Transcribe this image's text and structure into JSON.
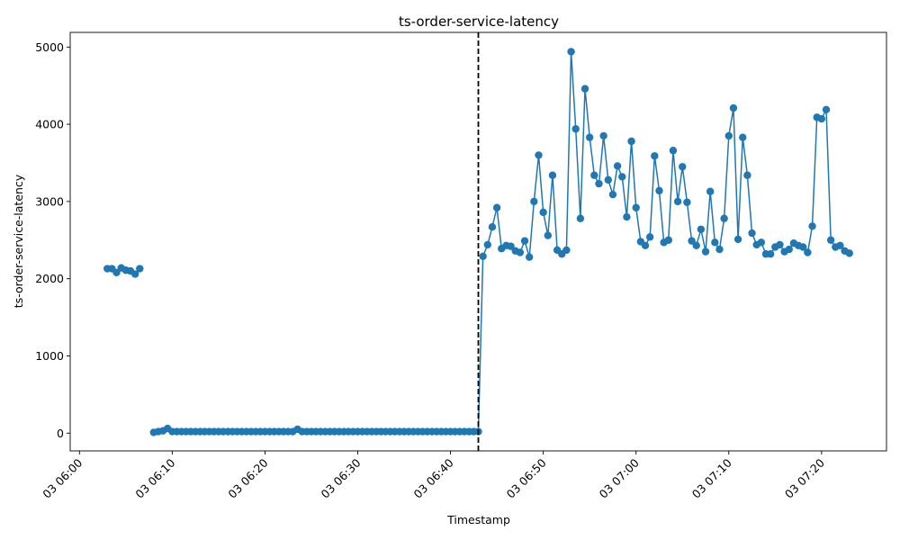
{
  "chart_data": {
    "type": "line",
    "title": "ts-order-service-latency",
    "xlabel": "Timestamp",
    "ylabel": "ts-order-service-latency",
    "x_tick_labels": [
      "03 06:00",
      "03 06:10",
      "03 06:20",
      "03 06:30",
      "03 06:40",
      "03 06:50",
      "03 07:00",
      "03 07:10",
      "03 07:20"
    ],
    "y_ticks": [
      0,
      1000,
      2000,
      3000,
      4000,
      5000
    ],
    "x_range": [
      "2024-01-03 05:59",
      "2024-01-03 07:27"
    ],
    "ylim": [
      -230,
      5190
    ],
    "grid": false,
    "marker": "circle",
    "series_color": "#1f77b4",
    "vline": {
      "time": "2024-01-03 06:43",
      "style": "dashed",
      "color": "#000000"
    },
    "series": [
      {
        "points": [
          [
            "2024-01-03 06:03",
            2130
          ],
          [
            "2024-01-03 06:03:30",
            2130
          ],
          [
            "2024-01-03 06:04",
            2080
          ],
          [
            "2024-01-03 06:04:30",
            2140
          ],
          [
            "2024-01-03 06:05",
            2110
          ],
          [
            "2024-01-03 06:05:30",
            2100
          ],
          [
            "2024-01-03 06:06",
            2060
          ],
          [
            "2024-01-03 06:06:30",
            2130
          ],
          [
            "2024-01-03 06:08",
            10
          ],
          [
            "2024-01-03 06:08:30",
            20
          ],
          [
            "2024-01-03 06:09",
            30
          ],
          [
            "2024-01-03 06:09:30",
            60
          ],
          [
            "2024-01-03 06:10",
            20
          ],
          [
            "2024-01-03 06:10:30",
            20
          ],
          [
            "2024-01-03 06:11",
            20
          ],
          [
            "2024-01-03 06:11:30",
            20
          ],
          [
            "2024-01-03 06:12",
            20
          ],
          [
            "2024-01-03 06:12:30",
            20
          ],
          [
            "2024-01-03 06:13",
            20
          ],
          [
            "2024-01-03 06:13:30",
            20
          ],
          [
            "2024-01-03 06:14",
            20
          ],
          [
            "2024-01-03 06:14:30",
            20
          ],
          [
            "2024-01-03 06:15",
            20
          ],
          [
            "2024-01-03 06:15:30",
            20
          ],
          [
            "2024-01-03 06:16",
            20
          ],
          [
            "2024-01-03 06:16:30",
            20
          ],
          [
            "2024-01-03 06:17",
            20
          ],
          [
            "2024-01-03 06:17:30",
            20
          ],
          [
            "2024-01-03 06:18",
            20
          ],
          [
            "2024-01-03 06:18:30",
            20
          ],
          [
            "2024-01-03 06:19",
            20
          ],
          [
            "2024-01-03 06:19:30",
            20
          ],
          [
            "2024-01-03 06:20",
            20
          ],
          [
            "2024-01-03 06:20:30",
            20
          ],
          [
            "2024-01-03 06:21",
            20
          ],
          [
            "2024-01-03 06:21:30",
            20
          ],
          [
            "2024-01-03 06:22",
            20
          ],
          [
            "2024-01-03 06:22:30",
            20
          ],
          [
            "2024-01-03 06:23",
            20
          ],
          [
            "2024-01-03 06:23:30",
            50
          ],
          [
            "2024-01-03 06:24",
            20
          ],
          [
            "2024-01-03 06:24:30",
            20
          ],
          [
            "2024-01-03 06:25",
            20
          ],
          [
            "2024-01-03 06:25:30",
            20
          ],
          [
            "2024-01-03 06:26",
            20
          ],
          [
            "2024-01-03 06:26:30",
            20
          ],
          [
            "2024-01-03 06:27",
            20
          ],
          [
            "2024-01-03 06:27:30",
            20
          ],
          [
            "2024-01-03 06:28",
            20
          ],
          [
            "2024-01-03 06:28:30",
            20
          ],
          [
            "2024-01-03 06:29",
            20
          ],
          [
            "2024-01-03 06:29:30",
            20
          ],
          [
            "2024-01-03 06:30",
            20
          ],
          [
            "2024-01-03 06:30:30",
            20
          ],
          [
            "2024-01-03 06:31",
            20
          ],
          [
            "2024-01-03 06:31:30",
            20
          ],
          [
            "2024-01-03 06:32",
            20
          ],
          [
            "2024-01-03 06:32:30",
            20
          ],
          [
            "2024-01-03 06:33",
            20
          ],
          [
            "2024-01-03 06:33:30",
            20
          ],
          [
            "2024-01-03 06:34",
            20
          ],
          [
            "2024-01-03 06:34:30",
            20
          ],
          [
            "2024-01-03 06:35",
            20
          ],
          [
            "2024-01-03 06:35:30",
            20
          ],
          [
            "2024-01-03 06:36",
            20
          ],
          [
            "2024-01-03 06:36:30",
            20
          ],
          [
            "2024-01-03 06:37",
            20
          ],
          [
            "2024-01-03 06:37:30",
            20
          ],
          [
            "2024-01-03 06:38",
            20
          ],
          [
            "2024-01-03 06:38:30",
            20
          ],
          [
            "2024-01-03 06:39",
            20
          ],
          [
            "2024-01-03 06:39:30",
            20
          ],
          [
            "2024-01-03 06:40",
            20
          ],
          [
            "2024-01-03 06:40:30",
            20
          ],
          [
            "2024-01-03 06:41",
            20
          ],
          [
            "2024-01-03 06:41:30",
            20
          ],
          [
            "2024-01-03 06:42",
            20
          ],
          [
            "2024-01-03 06:42:30",
            20
          ],
          [
            "2024-01-03 06:43",
            20
          ],
          [
            "2024-01-03 06:43:30",
            2290
          ],
          [
            "2024-01-03 06:44",
            2440
          ],
          [
            "2024-01-03 06:44:30",
            2670
          ],
          [
            "2024-01-03 06:45",
            2920
          ],
          [
            "2024-01-03 06:45:30",
            2390
          ],
          [
            "2024-01-03 06:46",
            2430
          ],
          [
            "2024-01-03 06:46:30",
            2420
          ],
          [
            "2024-01-03 06:47",
            2360
          ],
          [
            "2024-01-03 06:47:30",
            2340
          ],
          [
            "2024-01-03 06:48",
            2490
          ],
          [
            "2024-01-03 06:48:30",
            2280
          ],
          [
            "2024-01-03 06:49",
            3000
          ],
          [
            "2024-01-03 06:49:30",
            3600
          ],
          [
            "2024-01-03 06:50",
            2860
          ],
          [
            "2024-01-03 06:50:30",
            2560
          ],
          [
            "2024-01-03 06:51",
            3340
          ],
          [
            "2024-01-03 06:51:30",
            2370
          ],
          [
            "2024-01-03 06:52",
            2320
          ],
          [
            "2024-01-03 06:52:30",
            2370
          ],
          [
            "2024-01-03 06:53",
            4940
          ],
          [
            "2024-01-03 06:53:30",
            3940
          ],
          [
            "2024-01-03 06:54",
            2780
          ],
          [
            "2024-01-03 06:54:30",
            4460
          ],
          [
            "2024-01-03 06:55",
            3830
          ],
          [
            "2024-01-03 06:55:30",
            3340
          ],
          [
            "2024-01-03 06:56",
            3230
          ],
          [
            "2024-01-03 06:56:30",
            3850
          ],
          [
            "2024-01-03 06:57",
            3280
          ],
          [
            "2024-01-03 06:57:30",
            3090
          ],
          [
            "2024-01-03 06:58",
            3460
          ],
          [
            "2024-01-03 06:58:30",
            3320
          ],
          [
            "2024-01-03 06:59",
            2800
          ],
          [
            "2024-01-03 06:59:30",
            3780
          ],
          [
            "2024-01-03 07:00",
            2920
          ],
          [
            "2024-01-03 07:00:30",
            2480
          ],
          [
            "2024-01-03 07:01",
            2430
          ],
          [
            "2024-01-03 07:01:30",
            2540
          ],
          [
            "2024-01-03 07:02",
            3590
          ],
          [
            "2024-01-03 07:02:30",
            3140
          ],
          [
            "2024-01-03 07:03",
            2470
          ],
          [
            "2024-01-03 07:03:30",
            2500
          ],
          [
            "2024-01-03 07:04",
            3660
          ],
          [
            "2024-01-03 07:04:30",
            3000
          ],
          [
            "2024-01-03 07:05",
            3450
          ],
          [
            "2024-01-03 07:05:30",
            2990
          ],
          [
            "2024-01-03 07:06",
            2490
          ],
          [
            "2024-01-03 07:06:30",
            2430
          ],
          [
            "2024-01-03 07:07",
            2640
          ],
          [
            "2024-01-03 07:07:30",
            2350
          ],
          [
            "2024-01-03 07:08",
            3130
          ],
          [
            "2024-01-03 07:08:30",
            2470
          ],
          [
            "2024-01-03 07:09",
            2380
          ],
          [
            "2024-01-03 07:09:30",
            2780
          ],
          [
            "2024-01-03 07:10",
            3850
          ],
          [
            "2024-01-03 07:10:30",
            4210
          ],
          [
            "2024-01-03 07:11",
            2510
          ],
          [
            "2024-01-03 07:11:30",
            3830
          ],
          [
            "2024-01-03 07:12",
            3340
          ],
          [
            "2024-01-03 07:12:30",
            2590
          ],
          [
            "2024-01-03 07:13",
            2440
          ],
          [
            "2024-01-03 07:13:30",
            2470
          ],
          [
            "2024-01-03 07:14",
            2320
          ],
          [
            "2024-01-03 07:14:30",
            2320
          ],
          [
            "2024-01-03 07:15",
            2410
          ],
          [
            "2024-01-03 07:15:30",
            2440
          ],
          [
            "2024-01-03 07:16",
            2350
          ],
          [
            "2024-01-03 07:16:30",
            2380
          ],
          [
            "2024-01-03 07:17",
            2460
          ],
          [
            "2024-01-03 07:17:30",
            2430
          ],
          [
            "2024-01-03 07:18",
            2410
          ],
          [
            "2024-01-03 07:18:30",
            2340
          ],
          [
            "2024-01-03 07:19",
            2680
          ],
          [
            "2024-01-03 07:19:30",
            4090
          ],
          [
            "2024-01-03 07:20",
            4070
          ],
          [
            "2024-01-03 07:20:30",
            4190
          ],
          [
            "2024-01-03 07:21",
            2500
          ],
          [
            "2024-01-03 07:21:30",
            2410
          ],
          [
            "2024-01-03 07:22",
            2430
          ],
          [
            "2024-01-03 07:22:30",
            2360
          ],
          [
            "2024-01-03 07:23",
            2330
          ]
        ]
      }
    ]
  }
}
